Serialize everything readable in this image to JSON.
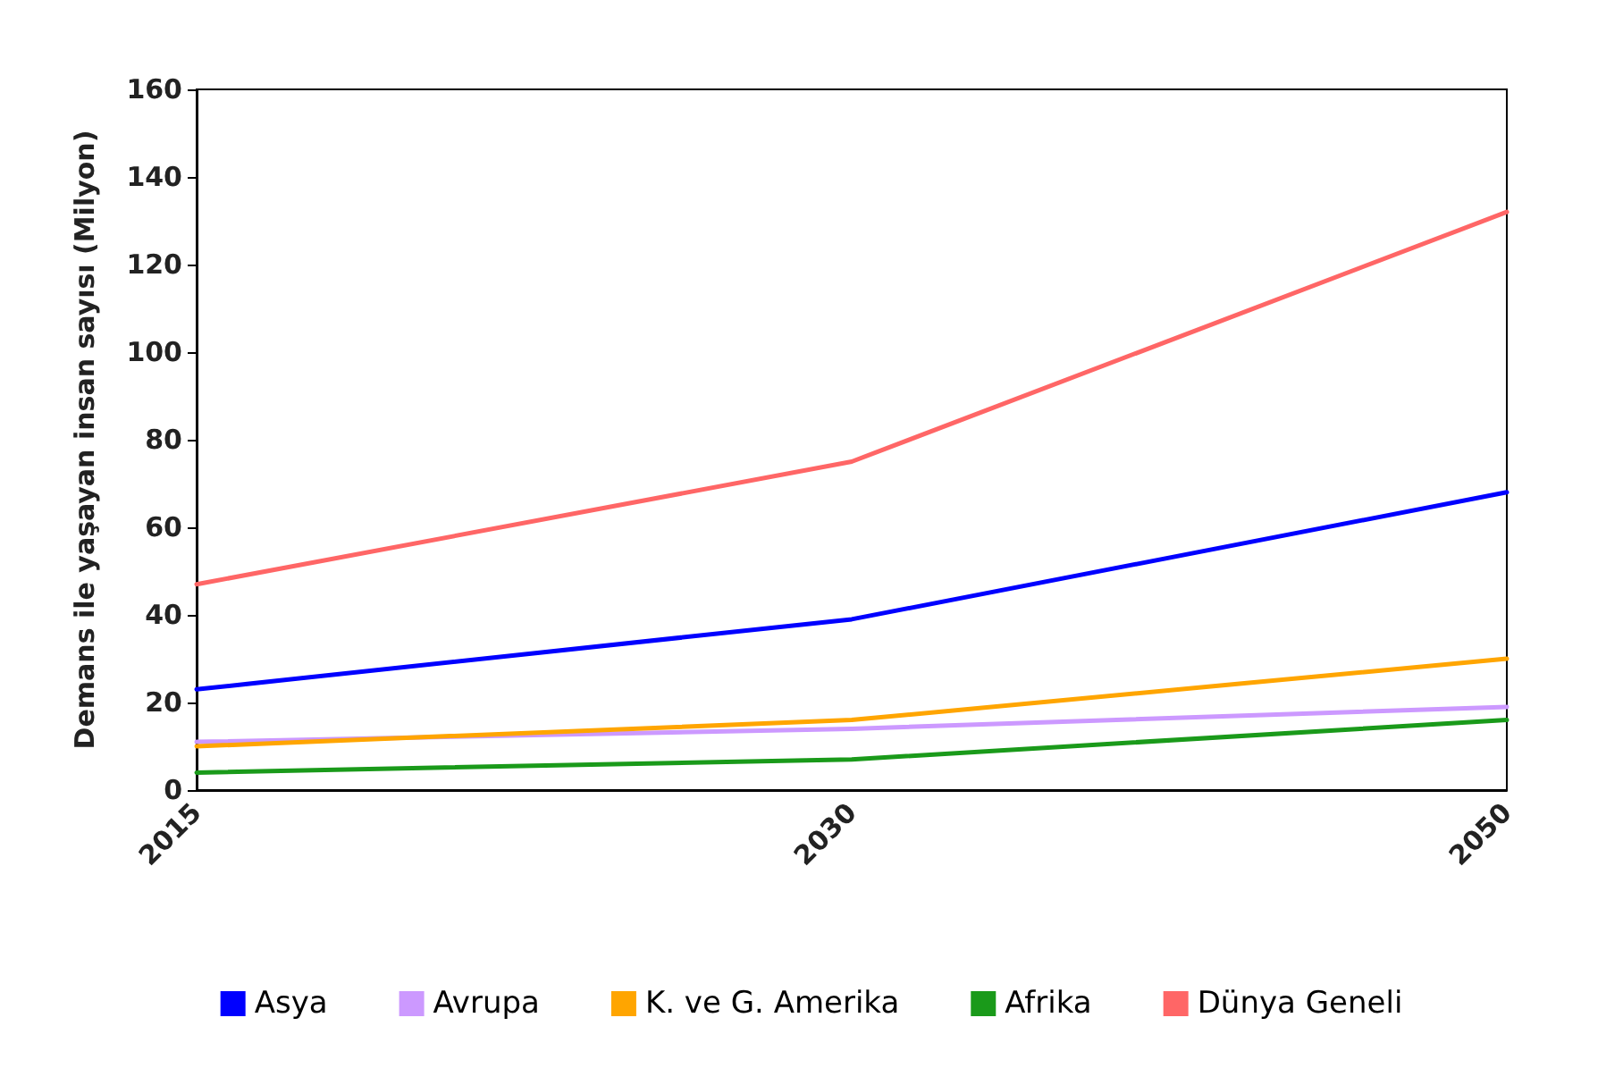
{
  "chart_data": {
    "type": "line",
    "ylabel": "Demans ile yaşayan insan sayısı (Milyon)",
    "categories": [
      "2015",
      "2030",
      "2050"
    ],
    "ylim": [
      0,
      160
    ],
    "yticks": [
      0,
      20,
      40,
      60,
      80,
      100,
      120,
      140,
      160
    ],
    "grid": false,
    "legend": "bottom",
    "marker": "none",
    "line_style": "solid",
    "series": [
      {
        "name": "Asya",
        "color": "#0000ff",
        "values": [
          23,
          39,
          68
        ]
      },
      {
        "name": "Avrupa",
        "color": "#cc99ff",
        "values": [
          11,
          14,
          19
        ]
      },
      {
        "name": "K. ve G. Amerika",
        "color": "#ffa500",
        "values": [
          10,
          16,
          30
        ]
      },
      {
        "name": "Afrika",
        "color": "#1a9a1a",
        "values": [
          4,
          7,
          16
        ]
      },
      {
        "name": "Dünya Geneli",
        "color": "#ff6666",
        "values": [
          47,
          75,
          132
        ]
      }
    ]
  }
}
